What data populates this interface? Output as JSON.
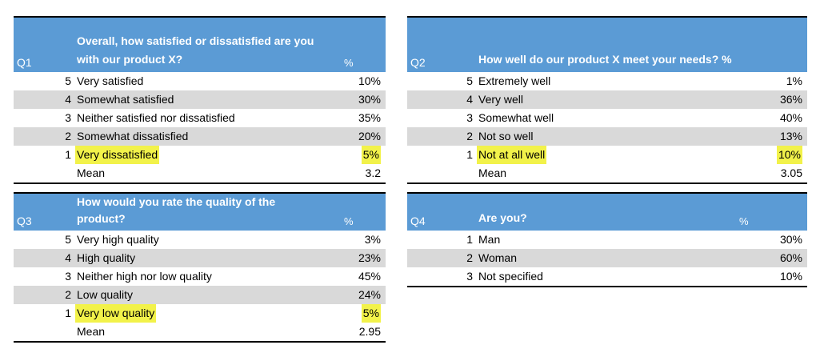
{
  "q1": {
    "id": "Q1",
    "question_line1": "Overall, how satisfied or dissatisfied are you",
    "question_line2": "with our product X?",
    "pct_header": "%",
    "rows": [
      {
        "num": "5",
        "label": "Very satisfied",
        "value": "10%"
      },
      {
        "num": "4",
        "label": "Somewhat satisfied",
        "value": "30%"
      },
      {
        "num": "3",
        "label": "Neither satisfied nor dissatisfied",
        "value": "35%"
      },
      {
        "num": "2",
        "label": "Somewhat dissatisfied",
        "value": "20%"
      },
      {
        "num": "1",
        "label": "Very dissatisfied",
        "value": "5%"
      }
    ],
    "mean_label": "Mean",
    "mean_value": "3.2"
  },
  "q2": {
    "id": "Q2",
    "question": "How well do our product X meet your needs? %",
    "rows": [
      {
        "num": "5",
        "label": "Extremely well",
        "value": "1%"
      },
      {
        "num": "4",
        "label": "Very well",
        "value": "36%"
      },
      {
        "num": "3",
        "label": "Somewhat well",
        "value": "40%"
      },
      {
        "num": "2",
        "label": "Not so well",
        "value": "13%"
      },
      {
        "num": "1",
        "label": "Not at all well",
        "value": "10%"
      }
    ],
    "mean_label": "Mean",
    "mean_value": "3.05"
  },
  "q3": {
    "id": "Q3",
    "question_line1": "How would you rate the quality of the",
    "question_line2": "product?",
    "pct_header": "%",
    "rows": [
      {
        "num": "5",
        "label": "Very high quality",
        "value": "3%"
      },
      {
        "num": "4",
        "label": "High quality",
        "value": "23%"
      },
      {
        "num": "3",
        "label": "Neither high nor low quality",
        "value": "45%"
      },
      {
        "num": "2",
        "label": "Low quality",
        "value": "24%"
      },
      {
        "num": "1",
        "label": "Very low quality",
        "value": "5%"
      }
    ],
    "mean_label": "Mean",
    "mean_value": "2.95"
  },
  "q4": {
    "id": "Q4",
    "question": "Are you?",
    "pct_header": "%",
    "rows": [
      {
        "num": "1",
        "label": "Man",
        "value": "30%"
      },
      {
        "num": "2",
        "label": "Woman",
        "value": "60%"
      },
      {
        "num": "3",
        "label": "Not specified",
        "value": "10%"
      }
    ]
  },
  "colors": {
    "header_bg": "#5b9bd5",
    "row_shade": "#d9d9d9",
    "highlight": "#f2f24a"
  }
}
